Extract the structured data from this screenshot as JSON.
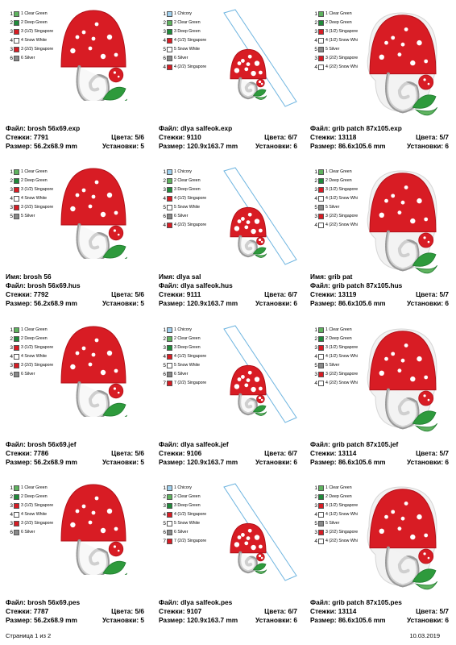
{
  "palette": {
    "Clear Green": "#5fb35f",
    "Deep Green": "#1f8a3a",
    "Singapore": "#d81c24",
    "Snow White": "#ffffff",
    "Silver": "#8a8a8a",
    "Chicory": "#9fd0ee",
    "Snow Whi": "#ffffff"
  },
  "labels": {
    "name": "Имя:",
    "file": "Файл:",
    "stitches": "Стежки:",
    "colors": "Цвета:",
    "size": "Размер:",
    "stops": "Установки:"
  },
  "footer": {
    "page": "Страница 1 из 2",
    "date": "10.03.2019"
  },
  "rows": [
    [
      {
        "kind": "brosh",
        "name": "",
        "file": "brosh 56x69.exp",
        "stitches": "7791",
        "colors": "5/6",
        "size": "56.2x68.9 mm",
        "stops": "5",
        "legend": [
          {
            "n": "1",
            "t": "Clear Green",
            "c": "#5fb35f"
          },
          {
            "n": "2",
            "t": "Deep Green",
            "c": "#1f8a3a"
          },
          {
            "n": "3",
            "t": "(1/2) Singapore",
            "c": "#d81c24"
          },
          {
            "n": "4",
            "t": "Snow White",
            "c": "#ffffff"
          },
          {
            "n": "3",
            "t": "(2/2) Singapore",
            "c": "#d81c24"
          },
          {
            "n": "6",
            "t": "Silver",
            "c": "#8a8a8a"
          }
        ]
      },
      {
        "kind": "dlya",
        "name": "",
        "file": "dlya salfeok.exp",
        "stitches": "9110",
        "colors": "6/7",
        "size": "120.9x163.7 mm",
        "stops": "6",
        "legend": [
          {
            "n": "1",
            "t": "Chicory",
            "c": "#9fd0ee"
          },
          {
            "n": "2",
            "t": "Clear Green",
            "c": "#5fb35f"
          },
          {
            "n": "3",
            "t": "Deep Green",
            "c": "#1f8a3a"
          },
          {
            "n": "4",
            "t": "(1/2) Singapore",
            "c": "#d81c24"
          },
          {
            "n": "5",
            "t": "Snow White",
            "c": "#ffffff"
          },
          {
            "n": "6",
            "t": "Silver",
            "c": "#8a8a8a"
          },
          {
            "n": "4",
            "t": "(2/2) Singapore",
            "c": "#d81c24"
          }
        ]
      },
      {
        "kind": "grib",
        "name": "",
        "file": "grib patch 87x105.exp",
        "stitches": "13118",
        "colors": "5/7",
        "size": "86.6x105.6 mm",
        "stops": "6",
        "legend": [
          {
            "n": "1",
            "t": "Clear Green",
            "c": "#5fb35f"
          },
          {
            "n": "2",
            "t": "Deep Green",
            "c": "#1f8a3a"
          },
          {
            "n": "3",
            "t": "(1/2) Singapore",
            "c": "#d81c24"
          },
          {
            "n": "4",
            "t": "(1/2) Snow Whi",
            "c": "#ffffff"
          },
          {
            "n": "5",
            "t": "Silver",
            "c": "#8a8a8a"
          },
          {
            "n": "3",
            "t": "(2/2) Singapore",
            "c": "#d81c24"
          },
          {
            "n": "4",
            "t": "(2/2) Snow Whi",
            "c": "#ffffff"
          }
        ]
      }
    ],
    [
      {
        "kind": "brosh",
        "name": "brosh 56",
        "file": "brosh 56x69.hus",
        "stitches": "7792",
        "colors": "5/6",
        "size": "56.2x68.9 mm",
        "stops": "5",
        "legend": [
          {
            "n": "1",
            "t": "Clear Green",
            "c": "#5fb35f"
          },
          {
            "n": "2",
            "t": "Deep Green",
            "c": "#1f8a3a"
          },
          {
            "n": "3",
            "t": "(1/2) Singapore",
            "c": "#d81c24"
          },
          {
            "n": "4",
            "t": "Snow White",
            "c": "#ffffff"
          },
          {
            "n": "3",
            "t": "(2/2) Singapore",
            "c": "#d81c24"
          },
          {
            "n": "5",
            "t": "Silver",
            "c": "#8a8a8a"
          }
        ]
      },
      {
        "kind": "dlya",
        "name": "dlya sal",
        "file": "dlya salfeok.hus",
        "stitches": "9111",
        "colors": "6/7",
        "size": "120.9x163.7 mm",
        "stops": "6",
        "legend": [
          {
            "n": "1",
            "t": "Chicory",
            "c": "#9fd0ee"
          },
          {
            "n": "2",
            "t": "Clear Green",
            "c": "#5fb35f"
          },
          {
            "n": "3",
            "t": "Deep Green",
            "c": "#1f8a3a"
          },
          {
            "n": "4",
            "t": "(1/2) Singapore",
            "c": "#d81c24"
          },
          {
            "n": "5",
            "t": "Snow White",
            "c": "#ffffff"
          },
          {
            "n": "6",
            "t": "Silver",
            "c": "#8a8a8a"
          },
          {
            "n": "4",
            "t": "(2/2) Singapore",
            "c": "#d81c24"
          }
        ]
      },
      {
        "kind": "grib",
        "name": "grib pat",
        "file": "grib patch 87x105.hus",
        "stitches": "13119",
        "colors": "5/7",
        "size": "86.6x105.6 mm",
        "stops": "6",
        "legend": [
          {
            "n": "1",
            "t": "Clear Green",
            "c": "#5fb35f"
          },
          {
            "n": "2",
            "t": "Deep Green",
            "c": "#1f8a3a"
          },
          {
            "n": "3",
            "t": "(1/2) Singapore",
            "c": "#d81c24"
          },
          {
            "n": "4",
            "t": "(1/2) Snow Whi",
            "c": "#ffffff"
          },
          {
            "n": "5",
            "t": "Silver",
            "c": "#8a8a8a"
          },
          {
            "n": "3",
            "t": "(2/2) Singapore",
            "c": "#d81c24"
          },
          {
            "n": "4",
            "t": "(2/2) Snow Whi",
            "c": "#ffffff"
          }
        ]
      }
    ],
    [
      {
        "kind": "brosh",
        "name": "",
        "file": "brosh 56x69.jef",
        "stitches": "7786",
        "colors": "5/6",
        "size": "56.2x68.9 mm",
        "stops": "5",
        "legend": [
          {
            "n": "1",
            "t": "Clear Green",
            "c": "#5fb35f"
          },
          {
            "n": "2",
            "t": "Deep Green",
            "c": "#1f8a3a"
          },
          {
            "n": "3",
            "t": "(1/2) Singapore",
            "c": "#d81c24"
          },
          {
            "n": "4",
            "t": "Snow White",
            "c": "#ffffff"
          },
          {
            "n": "3",
            "t": "(2/2) Singapore",
            "c": "#d81c24"
          },
          {
            "n": "6",
            "t": "Silver",
            "c": "#8a8a8a"
          }
        ]
      },
      {
        "kind": "dlya",
        "name": "",
        "file": "dlya salfeok.jef",
        "stitches": "9106",
        "colors": "6/7",
        "size": "120.9x163.7 mm",
        "stops": "6",
        "legend": [
          {
            "n": "1",
            "t": "Chicory",
            "c": "#9fd0ee"
          },
          {
            "n": "2",
            "t": "Clear Green",
            "c": "#5fb35f"
          },
          {
            "n": "3",
            "t": "Deep Green",
            "c": "#1f8a3a"
          },
          {
            "n": "4",
            "t": "(1/2) Singapore",
            "c": "#d81c24"
          },
          {
            "n": "5",
            "t": "Snow White",
            "c": "#ffffff"
          },
          {
            "n": "6",
            "t": "Silver",
            "c": "#8a8a8a"
          },
          {
            "n": "7",
            "t": "(2/2) Singapore",
            "c": "#d81c24"
          }
        ]
      },
      {
        "kind": "grib",
        "name": "",
        "file": "grib patch 87x105.jef",
        "stitches": "13114",
        "colors": "5/7",
        "size": "86.6x105.6 mm",
        "stops": "6",
        "legend": [
          {
            "n": "1",
            "t": "Clear Green",
            "c": "#5fb35f"
          },
          {
            "n": "2",
            "t": "Deep Green",
            "c": "#1f8a3a"
          },
          {
            "n": "3",
            "t": "(1/2) Singapore",
            "c": "#d81c24"
          },
          {
            "n": "4",
            "t": "(1/2) Snow Whi",
            "c": "#ffffff"
          },
          {
            "n": "5",
            "t": "Silver",
            "c": "#8a8a8a"
          },
          {
            "n": "3",
            "t": "(2/2) Singapore",
            "c": "#d81c24"
          },
          {
            "n": "4",
            "t": "(2/2) Snow Whi",
            "c": "#ffffff"
          }
        ]
      }
    ],
    [
      {
        "kind": "brosh",
        "name": "",
        "file": "brosh 56x69.pes",
        "stitches": "7787",
        "colors": "5/6",
        "size": "56.2x68.9 mm",
        "stops": "5",
        "legend": [
          {
            "n": "1",
            "t": "Clear Green",
            "c": "#5fb35f"
          },
          {
            "n": "2",
            "t": "Deep Green",
            "c": "#1f8a3a"
          },
          {
            "n": "3",
            "t": "(1/2) Singapore",
            "c": "#d81c24"
          },
          {
            "n": "4",
            "t": "Snow White",
            "c": "#ffffff"
          },
          {
            "n": "3",
            "t": "(2/2) Singapore",
            "c": "#d81c24"
          },
          {
            "n": "6",
            "t": "Silver",
            "c": "#8a8a8a"
          }
        ]
      },
      {
        "kind": "dlya",
        "name": "",
        "file": "dlya salfeok.pes",
        "stitches": "9107",
        "colors": "6/7",
        "size": "120.9x163.7 mm",
        "stops": "6",
        "legend": [
          {
            "n": "1",
            "t": "Chicory",
            "c": "#9fd0ee"
          },
          {
            "n": "2",
            "t": "Clear Green",
            "c": "#5fb35f"
          },
          {
            "n": "3",
            "t": "Deep Green",
            "c": "#1f8a3a"
          },
          {
            "n": "4",
            "t": "(1/2) Singapore",
            "c": "#d81c24"
          },
          {
            "n": "5",
            "t": "Snow White",
            "c": "#ffffff"
          },
          {
            "n": "6",
            "t": "Silver",
            "c": "#8a8a8a"
          },
          {
            "n": "7",
            "t": "(2/2) Singapore",
            "c": "#d81c24"
          }
        ]
      },
      {
        "kind": "grib",
        "name": "",
        "file": "grib patch 87x105.pes",
        "stitches": "13114",
        "colors": "5/7",
        "size": "86.6x105.6 mm",
        "stops": "6",
        "legend": [
          {
            "n": "1",
            "t": "Clear Green",
            "c": "#5fb35f"
          },
          {
            "n": "2",
            "t": "Deep Green",
            "c": "#1f8a3a"
          },
          {
            "n": "3",
            "t": "(1/2) Singapore",
            "c": "#d81c24"
          },
          {
            "n": "4",
            "t": "(1/2) Snow Whi",
            "c": "#ffffff"
          },
          {
            "n": "5",
            "t": "Silver",
            "c": "#8a8a8a"
          },
          {
            "n": "3",
            "t": "(2/2) Singapore",
            "c": "#d81c24"
          },
          {
            "n": "4",
            "t": "(2/2) Snow Whi",
            "c": "#ffffff"
          }
        ]
      }
    ]
  ]
}
